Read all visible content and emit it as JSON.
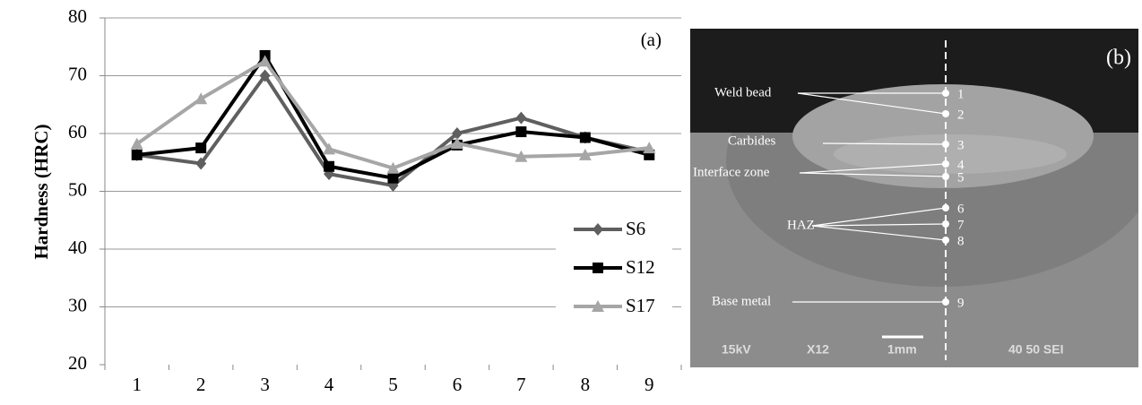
{
  "chart_data": {
    "type": "line",
    "y_label": "Hardness (HRC)",
    "annotation": "(a)",
    "categories": [
      "1",
      "2",
      "3",
      "4",
      "5",
      "6",
      "7",
      "8",
      "9"
    ],
    "series": [
      {
        "name": "S6",
        "color": "#5f5f5f",
        "marker": "diamond",
        "values": [
          56.3,
          54.8,
          70,
          53,
          51,
          60,
          62.7,
          59.3,
          56.8
        ]
      },
      {
        "name": "S12",
        "color": "#000000",
        "marker": "square",
        "values": [
          56.3,
          57.5,
          73.5,
          54.3,
          52.3,
          58,
          60.3,
          59.3,
          56.3
        ]
      },
      {
        "name": "S17",
        "color": "#a6a6a6",
        "marker": "triangle",
        "values": [
          58.2,
          66,
          72.5,
          57.3,
          54,
          58.3,
          56,
          56.3,
          57.5
        ]
      }
    ],
    "ylim": [
      20,
      80
    ],
    "yticks": [
      20,
      30,
      40,
      50,
      60,
      70,
      80
    ],
    "grid": true,
    "legend": "right"
  },
  "micrograph": {
    "annotation": "(b)",
    "labels": [
      "Weld bead",
      "Carbides",
      "Interface zone",
      "HAZ",
      "Base metal"
    ],
    "points": [
      "1",
      "2",
      "3",
      "4",
      "5",
      "6",
      "7",
      "8",
      "9"
    ],
    "footer": [
      "15kV",
      "X12",
      "1mm",
      "40 50 SEI"
    ]
  }
}
